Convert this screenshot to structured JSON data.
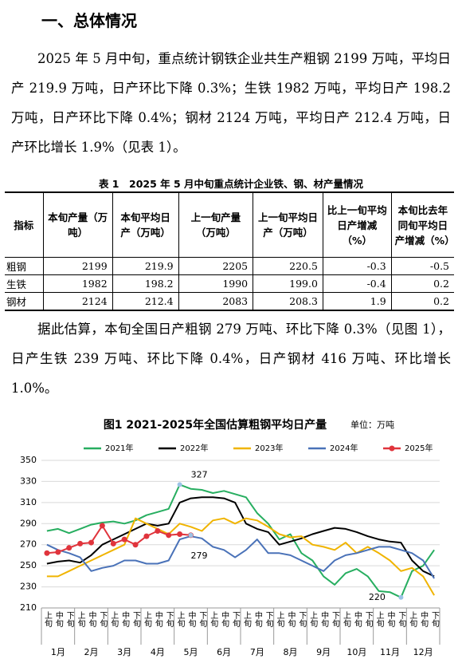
{
  "heading": "一、总体情况",
  "paragraphs": [
    "2025 年 5 月中旬，重点统计钢铁企业共生产粗钢 2199 万吨，平均日产 219.9 万吨，日产环比下降 0.3%；生铁 1982 万吨，平均日产 198.2 万吨，日产环比下降 0.4%；钢材 2124 万吨，平均日产 212.4 万吨，日产环比增长 1.9%（见表 1）。",
    "据此估算，本旬全国日产粗钢 279 万吨、环比下降 0.3%（见图 1），日产生铁 239 万吨、环比下降 0.4%，日产钢材 416 万吨、环比增长 1.0%。"
  ],
  "table": {
    "caption": "表 1　2025 年 5 月中旬重点统计企业铁、钢、材产量情况",
    "header": [
      "指标",
      "本旬产量（万吨）",
      "本旬平均日产（万吨）",
      "上一旬产量（万吨）",
      "上一旬平均日产（万吨）",
      "比上一旬平均日产增减（%）",
      "本旬比去年同旬平均日产增减（%）"
    ],
    "rows": [
      [
        "粗钢",
        "2199",
        "219.9",
        "2205",
        "220.5",
        "-0.3",
        "-0.5"
      ],
      [
        "生铁",
        "1982",
        "198.2",
        "1990",
        "199.0",
        "-0.4",
        "0.2"
      ],
      [
        "钢材",
        "2124",
        "212.4",
        "2083",
        "208.3",
        "1.9",
        "0.2"
      ]
    ]
  },
  "chart_data": {
    "type": "line",
    "title": "图1  2021-2025年全国估算粗钢平均日产量",
    "unit": "单位：万吨",
    "categories": [
      "上旬",
      "中旬",
      "下旬",
      "上旬",
      "中旬",
      "下旬",
      "上旬",
      "中旬",
      "下旬",
      "上旬",
      "中旬",
      "下旬",
      "上旬",
      "中旬",
      "下旬",
      "上旬",
      "中旬",
      "下旬",
      "上旬",
      "中旬",
      "下旬",
      "上旬",
      "中旬",
      "下旬",
      "上旬",
      "中旬",
      "下旬",
      "上旬",
      "中旬",
      "下旬",
      "上旬",
      "中旬",
      "下旬",
      "上旬",
      "中旬",
      "下旬"
    ],
    "months": [
      "1月",
      "2月",
      "3月",
      "4月",
      "5月",
      "6月",
      "7月",
      "8月",
      "9月",
      "10月",
      "11月",
      "12月"
    ],
    "ylim": [
      210,
      350
    ],
    "yticks": [
      210,
      230,
      250,
      270,
      290,
      310,
      330,
      350
    ],
    "grid": true,
    "series": [
      {
        "name": "2021年",
        "color": "#27ae60",
        "values": [
          283,
          285,
          281,
          285,
          289,
          291,
          292,
          290,
          293,
          298,
          301,
          304,
          327,
          323,
          322,
          319,
          321,
          318,
          315,
          300,
          290,
          275,
          280,
          262,
          255,
          240,
          232,
          243,
          247,
          240,
          226,
          225,
          220,
          245,
          250,
          265
        ]
      },
      {
        "name": "2022年",
        "color": "#000000",
        "values": [
          252,
          254,
          255,
          253,
          260,
          270,
          275,
          280,
          285,
          290,
          288,
          290,
          310,
          314,
          315,
          315,
          314,
          310,
          290,
          285,
          282,
          270,
          273,
          276,
          280,
          283,
          286,
          285,
          282,
          278,
          275,
          273,
          272,
          255,
          245,
          240
        ]
      },
      {
        "name": "2023年",
        "color": "#f0b400",
        "values": [
          240,
          240,
          245,
          250,
          255,
          260,
          265,
          270,
          295,
          290,
          285,
          280,
          290,
          287,
          283,
          293,
          295,
          290,
          295,
          293,
          287,
          280,
          277,
          278,
          270,
          268,
          265,
          272,
          262,
          268,
          262,
          255,
          245,
          248,
          240,
          222
        ]
      },
      {
        "name": "2024年",
        "color": "#4a72b8",
        "values": [
          270,
          265,
          262,
          258,
          245,
          248,
          250,
          255,
          255,
          252,
          252,
          255,
          275,
          278,
          276,
          268,
          265,
          258,
          265,
          275,
          262,
          262,
          260,
          255,
          250,
          245,
          255,
          260,
          262,
          265,
          268,
          268,
          265,
          262,
          255,
          238
        ]
      },
      {
        "name": "2025年",
        "color": "#e0343c",
        "values": [
          262,
          263,
          267,
          271,
          272,
          288,
          271,
          275,
          270,
          278,
          283,
          279,
          280,
          279,
          null,
          null,
          null,
          null,
          null,
          null,
          null,
          null,
          null,
          null,
          null,
          null,
          null,
          null,
          null,
          null,
          null,
          null,
          null,
          null,
          null,
          null
        ]
      }
    ],
    "annotations": [
      "327",
      "279",
      "220"
    ]
  }
}
